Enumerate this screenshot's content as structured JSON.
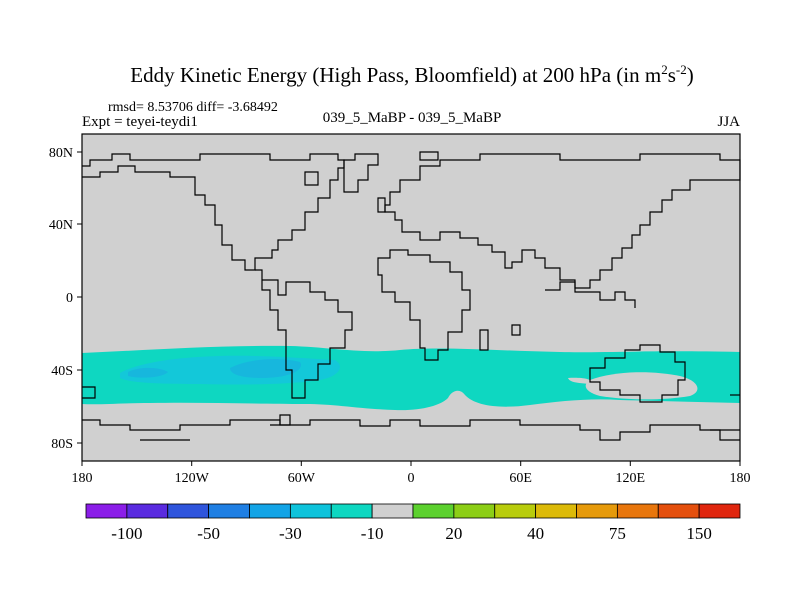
{
  "chart_data": {
    "type": "heatmap",
    "title": "Eddy Kinetic Energy (High Pass, Bloomfield) at 200 hPa (in m",
    "title_sup1": "2",
    "title_mid": "s",
    "title_sup2": "-2",
    "title_end": ")",
    "stats": "rmsd= 8.53706 diff= -3.68492",
    "left_label": "Expt = teyei-teydi1",
    "center_label": "039_5_MaBP - 039_5_MaBP",
    "right_label": "JJA",
    "x_range": [
      -180,
      180
    ],
    "y_range": [
      -90,
      90
    ],
    "x_ticks": [
      {
        "value": -180,
        "label": "180"
      },
      {
        "value": -120,
        "label": "120W"
      },
      {
        "value": -60,
        "label": "60W"
      },
      {
        "value": 0,
        "label": "0"
      },
      {
        "value": 60,
        "label": "60E"
      },
      {
        "value": 120,
        "label": "120E"
      },
      {
        "value": 180,
        "label": "180"
      }
    ],
    "y_ticks": [
      {
        "value": 80,
        "label": "80N"
      },
      {
        "value": 40,
        "label": "40N"
      },
      {
        "value": 0,
        "label": "0"
      },
      {
        "value": -40,
        "label": "40S"
      },
      {
        "value": -80,
        "label": "80S"
      }
    ],
    "colorbar": {
      "colors": [
        "#8b1de8",
        "#5a2be0",
        "#2f55dc",
        "#1f7fe3",
        "#13a4e6",
        "#0ec3db",
        "#0ed7c1",
        "#d0d0d0",
        "#5cd12e",
        "#8cce16",
        "#b8cc0c",
        "#dcba09",
        "#e69a0b",
        "#e8760c",
        "#e44f0d",
        "#e0260e"
      ],
      "level_labels": [
        {
          "boundary": 1,
          "label": "-100"
        },
        {
          "boundary": 3,
          "label": "-50"
        },
        {
          "boundary": 5,
          "label": "-30"
        },
        {
          "boundary": 7,
          "label": "-10"
        },
        {
          "boundary": 9,
          "label": "20"
        },
        {
          "boundary": 11,
          "label": "40"
        },
        {
          "boundary": 13,
          "label": "75"
        },
        {
          "boundary": 15,
          "label": "150"
        }
      ]
    },
    "background_color": "#d0d0d0",
    "field_regions": [
      {
        "level": -20,
        "color": "#0ed7c1",
        "description": "southern hemisphere storm-track band ~30S-60S"
      },
      {
        "level": -30,
        "color": "#13c8d9",
        "description": "core near 40S, 150W-30W"
      }
    ]
  }
}
